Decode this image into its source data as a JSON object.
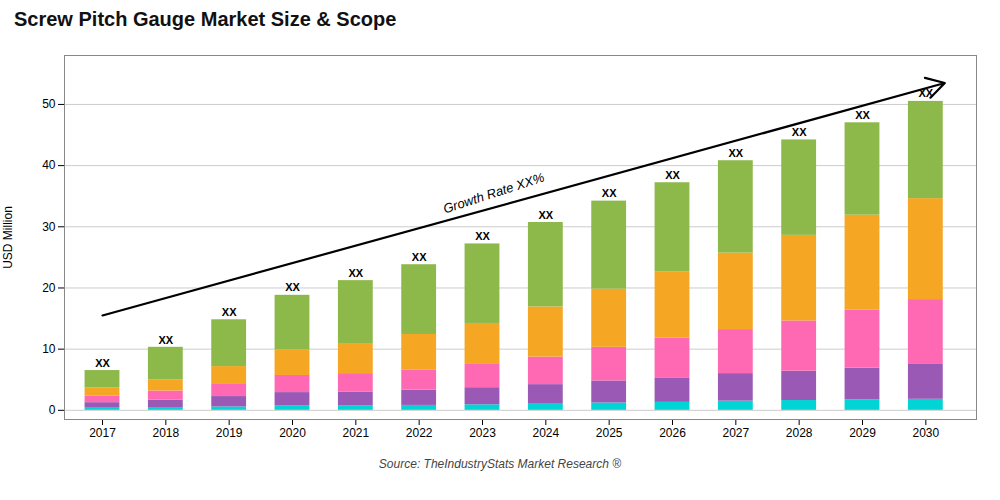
{
  "chart_data": {
    "type": "bar",
    "stacked": true,
    "title": "Screw Pitch Gauge Market Size & Scope",
    "ylabel": "USD Million",
    "source": "Source: TheIndustryStats Market Research ®",
    "x": [
      2017,
      2018,
      2019,
      2020,
      2021,
      2022,
      2023,
      2024,
      2025,
      2026,
      2027,
      2028,
      2029,
      2030
    ],
    "series": [
      {
        "color": "#00D4D4",
        "values": [
          0.35,
          0.35,
          0.55,
          0.7,
          0.7,
          0.8,
          0.9,
          1.0,
          1.2,
          1.3,
          1.5,
          1.6,
          1.7,
          1.8
        ]
      },
      {
        "color": "#9B59B6",
        "values": [
          0.9,
          1.3,
          1.7,
          2.2,
          2.3,
          2.5,
          2.8,
          3.2,
          3.6,
          4.0,
          4.5,
          4.8,
          5.2,
          5.8
        ]
      },
      {
        "color": "#FF69B4",
        "values": [
          1.1,
          1.5,
          2.1,
          2.8,
          3.0,
          3.3,
          3.8,
          4.5,
          5.5,
          6.5,
          7.2,
          8.2,
          9.5,
          10.5
        ]
      },
      {
        "color": "#F5A623",
        "values": [
          1.3,
          1.8,
          2.8,
          4.2,
          4.8,
          5.8,
          6.7,
          8.2,
          9.5,
          10.8,
          12.5,
          14.0,
          15.5,
          16.5
        ]
      },
      {
        "color": "#8DB84A",
        "values": [
          2.85,
          5.35,
          7.65,
          8.9,
          10.4,
          11.4,
          13.0,
          13.8,
          14.4,
          14.6,
          15.1,
          15.6,
          15.1,
          15.9
        ]
      }
    ],
    "totals": [
      6.5,
      10.2,
      14.8,
      18.8,
      21.2,
      23.8,
      27.2,
      30.7,
      34.2,
      37.2,
      40.8,
      44.2,
      47.0,
      50.5
    ],
    "total_label": "XX",
    "annotations": [
      {
        "text": "Growth Rate XX%",
        "x": 2023.2,
        "y": 34.5,
        "arrow": {
          "x1": 2017.0,
          "y1": 15.5,
          "x2": 2030.3,
          "y2": 53.5
        }
      }
    ],
    "xlim": [
      2016.4,
      2030.8
    ],
    "xticks": [
      2017,
      2018,
      2019,
      2020,
      2021,
      2022,
      2023,
      2024,
      2025,
      2026,
      2027,
      2028,
      2029,
      2030
    ],
    "ylim": [
      -1.5,
      58
    ],
    "yticks": [
      0,
      10,
      20,
      30,
      40,
      50
    ],
    "grid": true
  }
}
